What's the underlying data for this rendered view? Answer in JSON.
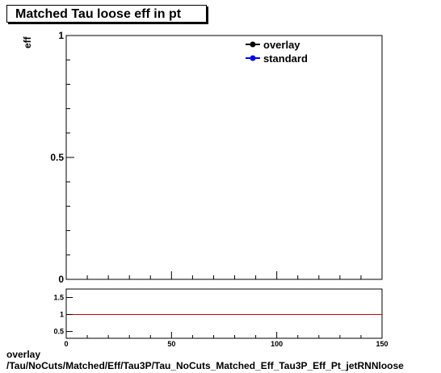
{
  "title": "Matched Tau loose eff in pt",
  "ylabel": "eff",
  "footer": {
    "line1": "overlay",
    "line2": "/Tau/NoCuts/Matched/Eff/Tau3P/Tau_NoCuts_Matched_Eff_Tau3P_Eff_Pt_jetRNNloose"
  },
  "chart_data": [
    {
      "type": "line",
      "panel": "main",
      "ylabel": "eff",
      "xlim": [
        0,
        150
      ],
      "ylim": [
        0,
        1
      ],
      "y_ticks": [
        "0",
        "0.5",
        "1"
      ],
      "legend": "top-right",
      "grid": false,
      "series": [
        {
          "name": "overlay",
          "color": "#000000",
          "x": [],
          "y": []
        },
        {
          "name": "standard",
          "color": "#0000ff",
          "x": [],
          "y": []
        }
      ]
    },
    {
      "type": "line",
      "panel": "ratio",
      "xlim": [
        0,
        150
      ],
      "ylim": [
        0.3,
        1.75
      ],
      "x_ticks": [
        "0",
        "50",
        "100",
        "150"
      ],
      "y_ticks": [
        "0.5",
        "1",
        "1.5"
      ],
      "reference_line": {
        "y": 1,
        "color": "#cc0000"
      },
      "grid": false
    }
  ]
}
